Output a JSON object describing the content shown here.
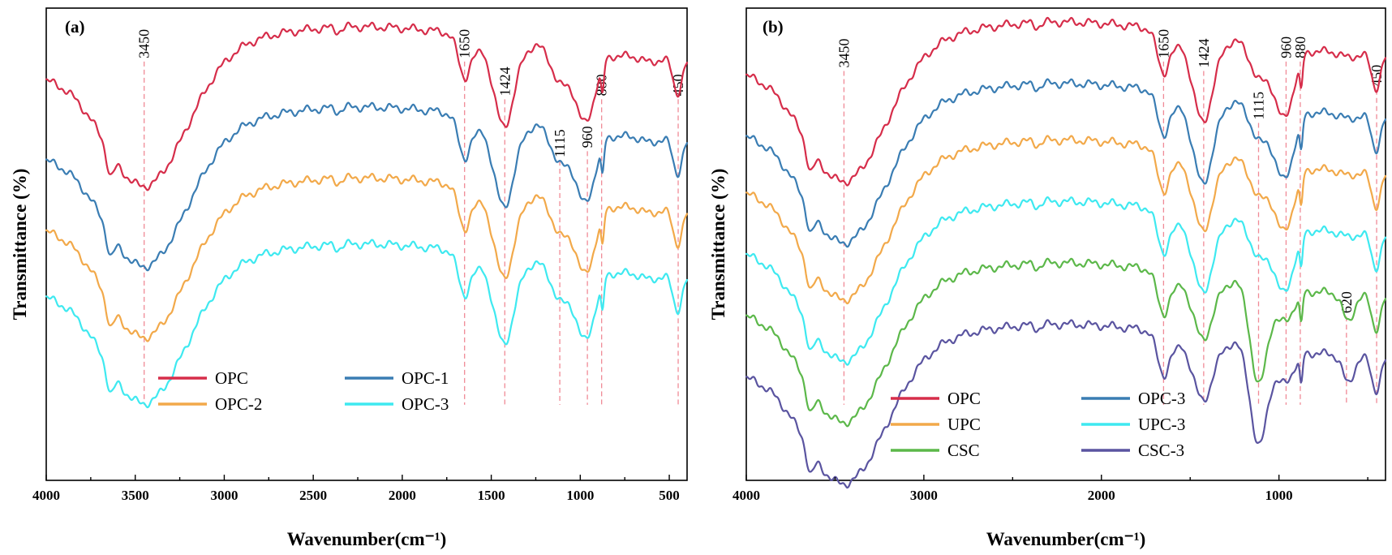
{
  "chart_data": [
    {
      "type": "line",
      "panel_label": "(a)",
      "xlabel": "Wavenumber(cm⁻¹)",
      "ylabel": "Transmittance (%)",
      "xlim": [
        4000,
        400
      ],
      "ylim": [
        0,
        1
      ],
      "x_ticks": [
        4000,
        3500,
        3000,
        2500,
        2000,
        1500,
        1000,
        500
      ],
      "x_tick_labels": [
        "4000",
        "3500",
        "3000",
        "2500",
        "2000",
        "1500",
        "1000",
        "500"
      ],
      "peaks": [
        {
          "x": 3450,
          "label": "3450",
          "label_y": 0.88
        },
        {
          "x": 1650,
          "label": "1650",
          "label_y": 0.88
        },
        {
          "x": 1424,
          "label": "1424",
          "label_y": 0.8
        },
        {
          "x": 1115,
          "label": "1115",
          "label_y": 0.67
        },
        {
          "x": 960,
          "label": "960",
          "label_y": 0.69
        },
        {
          "x": 880,
          "label": "880",
          "label_y": 0.8
        },
        {
          "x": 450,
          "label": "450",
          "label_y": 0.8
        }
      ],
      "legend": {
        "placement": "bottom-center",
        "columns": 2
      },
      "series": [
        {
          "name": "OPC",
          "color": "#d62d4a",
          "offset": 0.9
        },
        {
          "name": "OPC-1",
          "color": "#3a7db3",
          "offset": 0.73
        },
        {
          "name": "OPC-2",
          "color": "#f2a94a",
          "offset": 0.58
        },
        {
          "name": "OPC-3",
          "color": "#3ee9f0",
          "offset": 0.44
        }
      ]
    },
    {
      "type": "line",
      "panel_label": "(b)",
      "xlabel": "Wavenumber(cm⁻¹)",
      "ylabel": "Transmittance (%)",
      "xlim": [
        4000,
        400
      ],
      "ylim": [
        0,
        1
      ],
      "x_ticks": [
        4000,
        3000,
        2000,
        1000
      ],
      "x_tick_labels": [
        "4000",
        "3000",
        "2000",
        "1000"
      ],
      "peaks": [
        {
          "x": 3450,
          "label": "3450",
          "label_y": 0.86
        },
        {
          "x": 1650,
          "label": "1650",
          "label_y": 0.88
        },
        {
          "x": 1424,
          "label": "1424",
          "label_y": 0.86
        },
        {
          "x": 1115,
          "label": "1115",
          "label_y": 0.75
        },
        {
          "x": 960,
          "label": "960",
          "label_y": 0.88
        },
        {
          "x": 880,
          "label": "880",
          "label_y": 0.88
        },
        {
          "x": 620,
          "label": "620",
          "label_y": 0.34
        },
        {
          "x": 450,
          "label": "450",
          "label_y": 0.82
        }
      ],
      "legend": {
        "placement": "bottom-center",
        "columns": 2
      },
      "series": [
        {
          "name": "OPC",
          "color": "#d62d4a",
          "offset": 0.91
        },
        {
          "name": "OPC-3",
          "color": "#3a7db3",
          "offset": 0.78
        },
        {
          "name": "UPC",
          "color": "#f2a94a",
          "offset": 0.66
        },
        {
          "name": "UPC-3",
          "color": "#3ee9f0",
          "offset": 0.53
        },
        {
          "name": "CSC",
          "color": "#5cb84a",
          "offset": 0.4
        },
        {
          "name": "CSC-3",
          "color": "#5a54a0",
          "offset": 0.27
        }
      ]
    }
  ]
}
